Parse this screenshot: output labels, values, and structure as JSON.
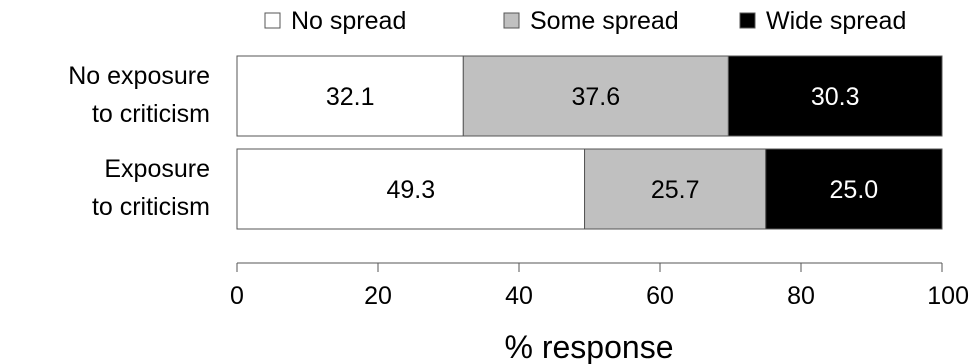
{
  "chart_data": {
    "type": "bar",
    "orientation": "horizontal",
    "stacked": true,
    "categories": [
      "No exposure to criticism",
      "Exposure to criticism"
    ],
    "category_lines": [
      [
        "No exposure",
        "to criticism"
      ],
      [
        "Exposure",
        "to criticism"
      ]
    ],
    "series": [
      {
        "name": "No spread",
        "values": [
          32.1,
          49.3
        ],
        "labels": [
          "32.1",
          "49.3"
        ],
        "color": "#ffffff",
        "label_color": "#000000"
      },
      {
        "name": "Some spread",
        "values": [
          37.6,
          25.7
        ],
        "labels": [
          "37.6",
          "25.7"
        ],
        "color": "#c0c0c0",
        "label_color": "#000000"
      },
      {
        "name": "Wide spread",
        "values": [
          30.3,
          25.0
        ],
        "labels": [
          "30.3",
          "25.0"
        ],
        "color": "#000000",
        "label_color": "#ffffff"
      }
    ],
    "xlim": [
      0,
      100
    ],
    "xticks": [
      0,
      20,
      40,
      60,
      80,
      100
    ],
    "xlabel": "% response",
    "ylabel": "",
    "title": "",
    "legend_position": "top",
    "grid": false
  }
}
